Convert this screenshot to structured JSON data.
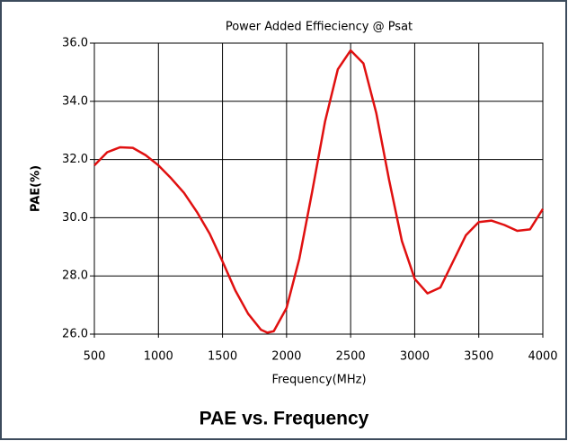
{
  "chart_data": {
    "type": "line",
    "title": "Power Added Effieciency @ Psat",
    "caption": "PAE vs. Frequency",
    "x_label": "Frequency(MHz)",
    "y_label": "PAE(%)",
    "x": [
      500,
      600,
      700,
      800,
      900,
      1000,
      1100,
      1200,
      1300,
      1400,
      1500,
      1600,
      1700,
      1800,
      1850,
      1900,
      2000,
      2100,
      2200,
      2300,
      2400,
      2500,
      2600,
      2700,
      2800,
      2900,
      3000,
      3100,
      3200,
      3300,
      3400,
      3500,
      3600,
      3700,
      3800,
      3900,
      4000
    ],
    "series": [
      {
        "name": "PAE",
        "color": "#e01010",
        "values": [
          31.8,
          32.25,
          32.42,
          32.4,
          32.15,
          31.8,
          31.35,
          30.85,
          30.2,
          29.45,
          28.5,
          27.5,
          26.7,
          26.15,
          26.05,
          26.1,
          26.9,
          28.6,
          30.9,
          33.3,
          35.1,
          35.75,
          35.3,
          33.6,
          31.3,
          29.2,
          27.9,
          27.4,
          27.6,
          28.5,
          29.4,
          29.85,
          29.9,
          29.75,
          29.55,
          29.6,
          30.3
        ]
      }
    ],
    "xlim": [
      500,
      4000
    ],
    "xticks": [
      500,
      1000,
      1500,
      2000,
      2500,
      3000,
      3500,
      4000
    ],
    "ylim": [
      26,
      36
    ],
    "yticks": [
      {
        "value": 26,
        "label": "26.0"
      },
      {
        "value": 28,
        "label": "28.0"
      },
      {
        "value": 30,
        "label": "30.0"
      },
      {
        "value": 32,
        "label": "32.0"
      },
      {
        "value": 34,
        "label": "34.0"
      },
      {
        "value": 36,
        "label": "36.0"
      }
    ],
    "grid": true
  }
}
